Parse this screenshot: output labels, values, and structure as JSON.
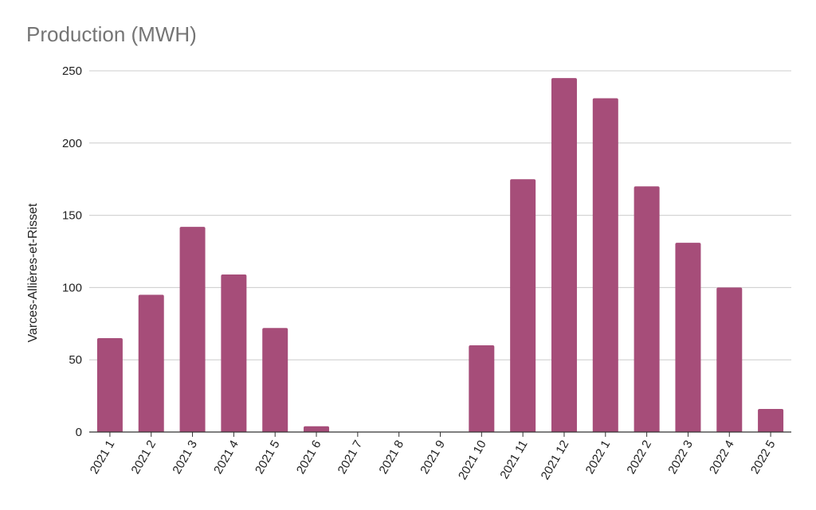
{
  "chart_data": {
    "type": "bar",
    "title": "Production (MWH)",
    "xlabel": "",
    "ylabel": "Varces-Allières-et-Risset",
    "categories": [
      "2021 1",
      "2021 2",
      "2021 3",
      "2021 4",
      "2021 5",
      "2021 6",
      "2021 7",
      "2021 8",
      "2021 9",
      "2021 10",
      "2021 11",
      "2021 12",
      "2022 1",
      "2022 2",
      "2022 3",
      "2022 4",
      "2022 5"
    ],
    "series": [
      {
        "values": [
          65,
          95,
          142,
          109,
          72,
          4,
          0,
          0,
          0,
          60,
          175,
          245,
          231,
          170,
          131,
          100,
          16
        ]
      }
    ],
    "ylim": [
      0,
      250
    ],
    "yticks": [
      0,
      50,
      100,
      150,
      200,
      250
    ],
    "grid": true,
    "bar_color": "#a64d79",
    "grid_color": "#cccccc",
    "axis_color": "#333333"
  }
}
